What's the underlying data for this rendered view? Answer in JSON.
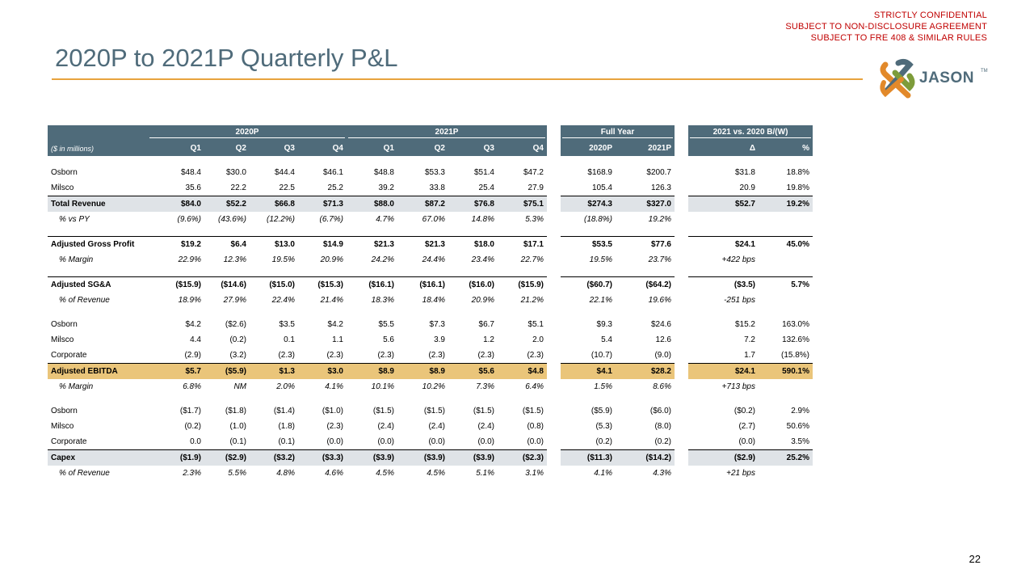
{
  "confidential": {
    "line1": "STRICTLY CONFIDENTIAL",
    "line2": "SUBJECT TO NON-DISCLOSURE AGREEMENT",
    "line3": "SUBJECT TO FRE 408 & SIMILAR RULES"
  },
  "title": "2020P to 2021P Quarterly P&L",
  "logo": {
    "text": "JASON",
    "tm": "TM",
    "colors": {
      "orange": "#e2892a",
      "slate": "#4f6b7a",
      "green": "#7d9c3a"
    }
  },
  "page_number": "22",
  "colors": {
    "header": "#4f6b7a",
    "accent_rule": "#e8a33d",
    "total_fill": "#dfe3e7",
    "ebitda_fill": "#eac57a",
    "confidential": "#c00000"
  },
  "table": {
    "groups": {
      "g2020": "2020P",
      "g2021": "2021P",
      "full_year": "Full Year",
      "variance": "2021 vs. 2020 B/(W)"
    },
    "col_headers": {
      "units": "($ in millions)",
      "q1_20": "Q1",
      "q2_20": "Q2",
      "q3_20": "Q3",
      "q4_20": "Q4",
      "q1_21": "Q1",
      "q2_21": "Q2",
      "q3_21": "Q3",
      "q4_21": "Q4",
      "fy20": "2020P",
      "fy21": "2021P",
      "delta": "Δ",
      "pct": "%"
    },
    "rows": {
      "rev_osborn": {
        "label": "Osborn",
        "c": [
          "$48.4",
          "$30.0",
          "$44.4",
          "$46.1",
          "$48.8",
          "$53.3",
          "$51.4",
          "$47.2",
          "$168.9",
          "$200.7",
          "$31.8",
          "18.8%"
        ]
      },
      "rev_milsco": {
        "label": "Milsco",
        "c": [
          "35.6",
          "22.2",
          "22.5",
          "25.2",
          "39.2",
          "33.8",
          "25.4",
          "27.9",
          "105.4",
          "126.3",
          "20.9",
          "19.8%"
        ]
      },
      "total_revenue": {
        "label": "Total Revenue",
        "c": [
          "$84.0",
          "$52.2",
          "$66.8",
          "$71.3",
          "$88.0",
          "$87.2",
          "$76.8",
          "$75.1",
          "$274.3",
          "$327.0",
          "$52.7",
          "19.2%"
        ]
      },
      "pct_vs_py": {
        "label": "% vs PY",
        "c": [
          "(9.6%)",
          "(43.6%)",
          "(12.2%)",
          "(6.7%)",
          "4.7%",
          "67.0%",
          "14.8%",
          "5.3%",
          "(18.8%)",
          "19.2%",
          "",
          ""
        ]
      },
      "gross_profit": {
        "label": "Adjusted Gross Profit",
        "c": [
          "$19.2",
          "$6.4",
          "$13.0",
          "$14.9",
          "$21.3",
          "$21.3",
          "$18.0",
          "$17.1",
          "$53.5",
          "$77.6",
          "$24.1",
          "45.0%"
        ]
      },
      "gp_margin": {
        "label": "% Margin",
        "c": [
          "22.9%",
          "12.3%",
          "19.5%",
          "20.9%",
          "24.2%",
          "24.4%",
          "23.4%",
          "22.7%",
          "19.5%",
          "23.7%",
          "+422 bps",
          ""
        ]
      },
      "sga": {
        "label": "Adjusted SG&A",
        "c": [
          "($15.9)",
          "($14.6)",
          "($15.0)",
          "($15.3)",
          "($16.1)",
          "($16.1)",
          "($16.0)",
          "($15.9)",
          "($60.7)",
          "($64.2)",
          "($3.5)",
          "5.7%"
        ]
      },
      "sga_pct": {
        "label": "% of Revenue",
        "c": [
          "18.9%",
          "27.9%",
          "22.4%",
          "21.4%",
          "18.3%",
          "18.4%",
          "20.9%",
          "21.2%",
          "22.1%",
          "19.6%",
          "-251 bps",
          ""
        ]
      },
      "eb_osborn": {
        "label": "Osborn",
        "c": [
          "$4.2",
          "($2.6)",
          "$3.5",
          "$4.2",
          "$5.5",
          "$7.3",
          "$6.7",
          "$5.1",
          "$9.3",
          "$24.6",
          "$15.2",
          "163.0%"
        ]
      },
      "eb_milsco": {
        "label": "Milsco",
        "c": [
          "4.4",
          "(0.2)",
          "0.1",
          "1.1",
          "5.6",
          "3.9",
          "1.2",
          "2.0",
          "5.4",
          "12.6",
          "7.2",
          "132.6%"
        ]
      },
      "eb_corporate": {
        "label": "Corporate",
        "c": [
          "(2.9)",
          "(3.2)",
          "(2.3)",
          "(2.3)",
          "(2.3)",
          "(2.3)",
          "(2.3)",
          "(2.3)",
          "(10.7)",
          "(9.0)",
          "1.7",
          "(15.8%)"
        ]
      },
      "ebitda": {
        "label": "Adjusted EBITDA",
        "c": [
          "$5.7",
          "($5.9)",
          "$1.3",
          "$3.0",
          "$8.9",
          "$8.9",
          "$5.6",
          "$4.8",
          "$4.1",
          "$28.2",
          "$24.1",
          "590.1%"
        ]
      },
      "ebitda_margin": {
        "label": "% Margin",
        "c": [
          "6.8%",
          "NM",
          "2.0%",
          "4.1%",
          "10.1%",
          "10.2%",
          "7.3%",
          "6.4%",
          "1.5%",
          "8.6%",
          "+713 bps",
          ""
        ]
      },
      "cx_osborn": {
        "label": "Osborn",
        "c": [
          "($1.7)",
          "($1.8)",
          "($1.4)",
          "($1.0)",
          "($1.5)",
          "($1.5)",
          "($1.5)",
          "($1.5)",
          "($5.9)",
          "($6.0)",
          "($0.2)",
          "2.9%"
        ]
      },
      "cx_milsco": {
        "label": "Milsco",
        "c": [
          "(0.2)",
          "(1.0)",
          "(1.8)",
          "(2.3)",
          "(2.4)",
          "(2.4)",
          "(2.4)",
          "(0.8)",
          "(5.3)",
          "(8.0)",
          "(2.7)",
          "50.6%"
        ]
      },
      "cx_corporate": {
        "label": "Corporate",
        "c": [
          "0.0",
          "(0.1)",
          "(0.1)",
          "(0.0)",
          "(0.0)",
          "(0.0)",
          "(0.0)",
          "(0.0)",
          "(0.2)",
          "(0.2)",
          "(0.0)",
          "3.5%"
        ]
      },
      "capex": {
        "label": "Capex",
        "c": [
          "($1.9)",
          "($2.9)",
          "($3.2)",
          "($3.3)",
          "($3.9)",
          "($3.9)",
          "($3.9)",
          "($2.3)",
          "($11.3)",
          "($14.2)",
          "($2.9)",
          "25.2%"
        ]
      },
      "capex_pct": {
        "label": "% of Revenue",
        "c": [
          "2.3%",
          "5.5%",
          "4.8%",
          "4.6%",
          "4.5%",
          "4.5%",
          "5.1%",
          "3.1%",
          "4.1%",
          "4.3%",
          "+21 bps",
          ""
        ]
      }
    }
  }
}
